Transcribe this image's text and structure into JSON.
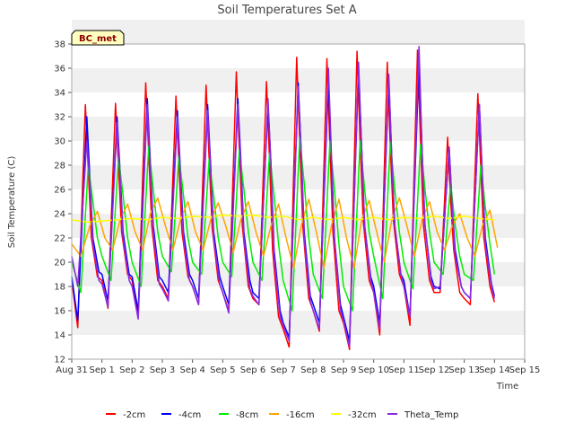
{
  "chart_data": {
    "type": "line",
    "title": "Soil Temperatures Set A",
    "xlabel": "Time",
    "ylabel": "Soil Temperature (C)",
    "site_label": "BC_met",
    "ylim": [
      12,
      38
    ],
    "yticks": [
      12,
      14,
      16,
      18,
      20,
      22,
      24,
      26,
      28,
      30,
      32,
      34,
      36,
      38
    ],
    "xlim": [
      0,
      15
    ],
    "xticks": [
      "Aug 31",
      "Sep 1",
      "Sep 2",
      "Sep 3",
      "Sep 4",
      "Sep 5",
      "Sep 6",
      "Sep 7",
      "Sep 8",
      "Sep 9",
      "Sep 10",
      "Sep 11",
      "Sep 12",
      "Sep 13",
      "Sep 14",
      "Sep 15"
    ],
    "x_unit": "days since Aug 31 00:00",
    "grid": "alternating horizontal bands",
    "legend_position": "bottom",
    "series": [
      {
        "name": "-2cm",
        "color": "#ff0000",
        "x": [
          0.0,
          0.2,
          0.45,
          0.55,
          0.65,
          0.85,
          1.0,
          1.2,
          1.45,
          1.55,
          1.65,
          1.85,
          2.0,
          2.2,
          2.45,
          2.55,
          2.65,
          2.85,
          3.0,
          3.2,
          3.45,
          3.55,
          3.65,
          3.85,
          4.0,
          4.2,
          4.45,
          4.55,
          4.65,
          4.85,
          5.0,
          5.2,
          5.45,
          5.55,
          5.65,
          5.85,
          6.0,
          6.2,
          6.45,
          6.55,
          6.65,
          6.85,
          7.0,
          7.2,
          7.45,
          7.55,
          7.65,
          7.85,
          8.0,
          8.2,
          8.45,
          8.55,
          8.65,
          8.85,
          9.0,
          9.2,
          9.45,
          9.55,
          9.65,
          9.85,
          10.0,
          10.2,
          10.45,
          10.55,
          10.65,
          10.85,
          11.0,
          11.2,
          11.45,
          11.55,
          11.65,
          11.85,
          12.0,
          12.2,
          12.45,
          12.55,
          12.65,
          12.85,
          13.0,
          13.2,
          13.45,
          13.55,
          13.65,
          13.85,
          14.0
        ],
        "y": [
          18.5,
          14.6,
          33.0,
          27.5,
          22.0,
          18.8,
          18.5,
          16.2,
          33.1,
          27.8,
          22.5,
          19.0,
          18.5,
          15.5,
          34.8,
          29.0,
          23.0,
          18.5,
          18.0,
          17.0,
          33.7,
          28.0,
          22.5,
          18.8,
          18.0,
          16.5,
          34.6,
          28.5,
          22.8,
          18.5,
          17.5,
          16.0,
          35.7,
          29.2,
          23.0,
          18.0,
          17.0,
          16.5,
          34.9,
          28.5,
          21.0,
          15.5,
          14.5,
          13.0,
          36.9,
          30.0,
          23.0,
          17.0,
          16.0,
          14.3,
          36.8,
          29.5,
          22.5,
          16.0,
          15.0,
          12.8,
          37.4,
          30.0,
          23.5,
          18.5,
          17.5,
          14.0,
          36.5,
          29.5,
          23.5,
          19.0,
          18.0,
          14.8,
          37.5,
          30.0,
          23.0,
          18.5,
          17.5,
          17.5,
          30.3,
          25.0,
          21.0,
          17.5,
          17.0,
          16.5,
          33.9,
          27.5,
          22.0,
          18.0,
          16.7
        ]
      },
      {
        "name": "-4cm",
        "color": "#0000ff",
        "x": [
          0.0,
          0.2,
          0.5,
          0.6,
          0.7,
          0.9,
          1.0,
          1.2,
          1.5,
          1.6,
          1.7,
          1.9,
          2.0,
          2.2,
          2.5,
          2.6,
          2.7,
          2.9,
          3.0,
          3.2,
          3.5,
          3.6,
          3.7,
          3.9,
          4.0,
          4.2,
          4.5,
          4.6,
          4.7,
          4.9,
          5.0,
          5.2,
          5.5,
          5.6,
          5.7,
          5.9,
          6.0,
          6.2,
          6.5,
          6.6,
          6.7,
          6.9,
          7.0,
          7.2,
          7.5,
          7.6,
          7.7,
          7.9,
          8.0,
          8.2,
          8.5,
          8.6,
          8.7,
          8.9,
          9.0,
          9.2,
          9.5,
          9.6,
          9.7,
          9.9,
          10.0,
          10.2,
          10.5,
          10.6,
          10.7,
          10.9,
          11.0,
          11.2,
          11.5,
          11.6,
          11.7,
          11.9,
          12.0,
          12.2,
          12.5,
          12.6,
          12.7,
          12.9,
          13.0,
          13.2,
          13.5,
          13.6,
          13.7,
          13.9,
          14.0
        ],
        "y": [
          18.8,
          15.2,
          32.0,
          27.0,
          22.0,
          19.2,
          19.0,
          16.8,
          32.0,
          27.5,
          22.5,
          19.0,
          18.8,
          16.0,
          33.5,
          28.5,
          23.0,
          18.8,
          18.5,
          17.5,
          32.5,
          27.5,
          22.5,
          19.0,
          18.5,
          17.0,
          33.0,
          28.0,
          22.5,
          18.8,
          18.0,
          16.5,
          33.5,
          28.5,
          22.5,
          18.5,
          17.5,
          17.0,
          33.0,
          28.0,
          21.0,
          16.0,
          15.0,
          13.8,
          34.8,
          29.0,
          22.5,
          17.2,
          16.5,
          15.0,
          35.0,
          28.5,
          22.0,
          16.5,
          15.5,
          13.5,
          36.0,
          29.5,
          23.0,
          18.8,
          18.0,
          15.0,
          35.0,
          28.5,
          23.0,
          19.0,
          18.5,
          15.5,
          36.5,
          29.5,
          23.0,
          18.8,
          18.0,
          17.8,
          29.5,
          24.5,
          21.0,
          18.0,
          17.5,
          17.0,
          33.0,
          27.0,
          22.0,
          18.2,
          17.2
        ]
      },
      {
        "name": "-8cm",
        "color": "#00ee00",
        "x": [
          0.0,
          0.3,
          0.55,
          0.7,
          0.85,
          1.0,
          1.3,
          1.55,
          1.7,
          1.85,
          2.0,
          2.3,
          2.55,
          2.7,
          2.85,
          3.0,
          3.3,
          3.55,
          3.7,
          3.85,
          4.0,
          4.3,
          4.55,
          4.7,
          4.85,
          5.0,
          5.3,
          5.55,
          5.7,
          5.85,
          6.0,
          6.3,
          6.55,
          6.7,
          6.85,
          7.0,
          7.3,
          7.55,
          7.7,
          7.85,
          8.0,
          8.3,
          8.55,
          8.7,
          8.85,
          9.0,
          9.3,
          9.55,
          9.7,
          9.85,
          10.0,
          10.3,
          10.55,
          10.7,
          10.85,
          11.0,
          11.3,
          11.55,
          11.7,
          11.85,
          12.0,
          12.3,
          12.55,
          12.7,
          12.85,
          13.0,
          13.3,
          13.55,
          13.7,
          13.85,
          14.0
        ],
        "y": [
          20.0,
          17.5,
          28.0,
          25.0,
          22.0,
          20.5,
          18.5,
          28.7,
          25.5,
          22.0,
          20.0,
          18.0,
          29.6,
          26.0,
          22.5,
          20.5,
          19.2,
          28.8,
          25.5,
          22.0,
          20.0,
          19.0,
          28.5,
          25.5,
          22.0,
          20.0,
          18.8,
          29.3,
          26.0,
          22.5,
          20.0,
          18.5,
          29.0,
          25.5,
          21.5,
          18.5,
          16.0,
          30.3,
          26.5,
          22.0,
          19.0,
          17.0,
          30.0,
          26.0,
          21.5,
          18.0,
          16.0,
          30.0,
          26.0,
          22.5,
          20.5,
          17.0,
          29.9,
          26.0,
          22.5,
          20.0,
          17.8,
          29.7,
          26.0,
          22.5,
          20.0,
          19.0,
          26.5,
          23.0,
          20.5,
          19.0,
          18.5,
          28.0,
          24.5,
          21.5,
          19.0
        ]
      },
      {
        "name": "-16cm",
        "color": "#ffa500",
        "x": [
          0.0,
          0.3,
          0.6,
          0.85,
          1.1,
          1.35,
          1.6,
          1.85,
          2.1,
          2.35,
          2.6,
          2.85,
          3.1,
          3.35,
          3.6,
          3.85,
          4.1,
          4.35,
          4.6,
          4.85,
          5.1,
          5.35,
          5.6,
          5.85,
          6.1,
          6.35,
          6.6,
          6.85,
          7.1,
          7.35,
          7.6,
          7.85,
          8.1,
          8.35,
          8.6,
          8.85,
          9.1,
          9.35,
          9.6,
          9.85,
          10.1,
          10.35,
          10.6,
          10.85,
          11.1,
          11.35,
          11.6,
          11.85,
          12.1,
          12.35,
          12.6,
          12.85,
          13.1,
          13.35,
          13.6,
          13.85,
          14.1
        ],
        "y": [
          21.5,
          20.5,
          23.0,
          24.2,
          22.0,
          21.0,
          23.5,
          24.8,
          22.5,
          21.0,
          24.0,
          25.3,
          23.0,
          21.0,
          23.5,
          25.0,
          22.5,
          21.0,
          23.5,
          24.9,
          23.0,
          20.8,
          23.5,
          25.0,
          22.5,
          20.5,
          23.0,
          24.8,
          22.0,
          19.5,
          23.0,
          25.2,
          22.5,
          19.5,
          23.0,
          25.2,
          22.0,
          19.5,
          23.5,
          25.1,
          22.5,
          20.0,
          23.5,
          25.3,
          23.0,
          20.5,
          23.5,
          25.0,
          22.5,
          21.0,
          23.0,
          24.0,
          22.0,
          20.5,
          23.0,
          24.3,
          21.2
        ]
      },
      {
        "name": "-32cm",
        "color": "#ffff00",
        "x": [
          0.0,
          0.5,
          1.0,
          1.5,
          2.0,
          2.5,
          3.0,
          3.5,
          4.0,
          4.5,
          5.0,
          5.5,
          6.0,
          6.5,
          7.0,
          7.5,
          8.0,
          8.5,
          9.0,
          9.5,
          10.0,
          10.5,
          11.0,
          11.5,
          12.0,
          12.5,
          13.0,
          13.5,
          14.0
        ],
        "y": [
          23.5,
          23.3,
          23.4,
          23.5,
          23.6,
          23.5,
          23.7,
          23.6,
          23.8,
          23.7,
          23.9,
          23.8,
          23.9,
          23.7,
          23.8,
          23.5,
          23.7,
          23.5,
          23.7,
          23.5,
          23.7,
          23.5,
          23.7,
          23.6,
          23.8,
          23.6,
          23.8,
          23.6,
          23.5
        ]
      },
      {
        "name": "Theta_Temp",
        "color": "#8a2be2",
        "x": [
          0.0,
          0.2,
          0.5,
          0.6,
          0.7,
          0.9,
          1.0,
          1.2,
          1.5,
          1.6,
          1.7,
          1.9,
          2.0,
          2.2,
          2.5,
          2.6,
          2.7,
          2.9,
          3.0,
          3.2,
          3.5,
          3.6,
          3.7,
          3.9,
          4.0,
          4.2,
          4.5,
          4.6,
          4.7,
          4.9,
          5.0,
          5.2,
          5.5,
          5.6,
          5.7,
          5.9,
          6.0,
          6.2,
          6.5,
          6.6,
          6.7,
          6.9,
          7.0,
          7.2,
          7.5,
          7.6,
          7.7,
          7.9,
          8.0,
          8.2,
          8.5,
          8.6,
          8.7,
          8.9,
          9.0,
          9.2,
          9.5,
          9.6,
          9.7,
          9.9,
          10.0,
          10.2,
          10.5,
          10.6,
          10.7,
          10.9,
          11.0,
          11.2,
          11.5,
          11.6,
          11.7,
          11.9,
          12.0,
          12.2,
          12.5,
          12.6,
          12.7,
          12.9,
          13.0,
          13.2,
          13.5,
          13.6,
          13.7,
          13.9,
          14.0
        ],
        "y": [
          20.5,
          18.0,
          30.0,
          26.5,
          21.5,
          18.5,
          18.2,
          16.3,
          31.5,
          27.0,
          22.0,
          18.5,
          18.0,
          15.3,
          33.0,
          28.0,
          22.5,
          18.2,
          17.8,
          16.8,
          32.0,
          27.0,
          22.0,
          18.5,
          18.0,
          16.5,
          32.5,
          27.5,
          22.0,
          18.2,
          17.5,
          15.8,
          33.0,
          28.0,
          22.0,
          17.8,
          17.2,
          16.5,
          33.5,
          28.0,
          20.5,
          15.5,
          14.8,
          13.5,
          34.5,
          29.0,
          22.0,
          16.8,
          16.0,
          14.5,
          36.0,
          29.0,
          22.0,
          16.0,
          15.2,
          13.0,
          36.5,
          29.5,
          23.0,
          18.5,
          17.5,
          14.5,
          35.5,
          28.5,
          23.0,
          19.0,
          18.0,
          15.5,
          37.8,
          29.5,
          23.0,
          18.5,
          17.8,
          18.0,
          29.5,
          24.5,
          20.5,
          18.0,
          17.5,
          17.0,
          33.0,
          27.0,
          21.5,
          18.0,
          17.0
        ]
      }
    ]
  }
}
